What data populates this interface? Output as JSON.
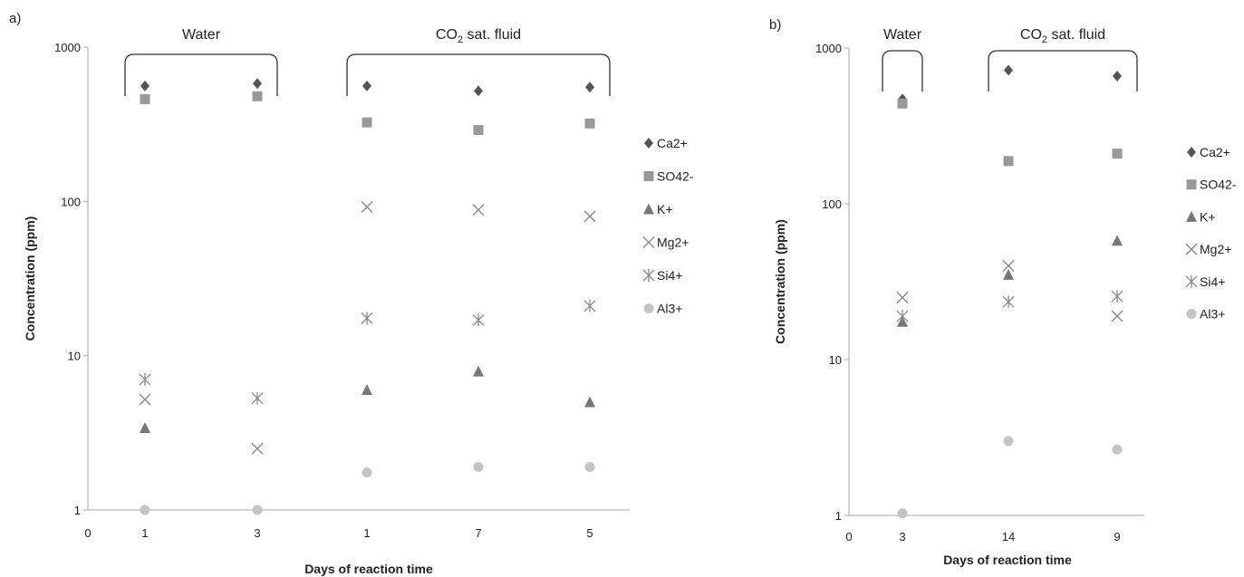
{
  "colors": {
    "Ca2+": "#555555",
    "SO42-": "#999999",
    "K+": "#777777",
    "Mg2+": "#888888",
    "Si4+": "#8a8a8a",
    "Al3+": "#c4c4c4",
    "axis": "#aaaaaa"
  },
  "chart_data": [
    {
      "panel_label": "a)",
      "type": "scatter",
      "x_scale": "category",
      "y_scale": "log",
      "ylim": [
        1,
        1000
      ],
      "y_ticks": [
        1,
        10,
        100,
        1000
      ],
      "y_tick_labels": [
        "1",
        "10",
        "100",
        "1000"
      ],
      "x_origin_label": "0",
      "categories": [
        "1",
        "3",
        "1",
        "7",
        "5"
      ],
      "xlabel": "Days of reaction time",
      "ylabel": "Concentration (ppm)",
      "groups": [
        {
          "label": "Water",
          "label_sub": "",
          "label_rest": "",
          "from": 0,
          "to": 1
        },
        {
          "label": "CO",
          "label_sub": "2",
          "label_rest": " sat. fluid",
          "from": 2,
          "to": 4
        }
      ],
      "legend_position": "right",
      "series": [
        {
          "name": "Ca2+",
          "marker": "diamond",
          "values": [
            560,
            580,
            560,
            520,
            550
          ]
        },
        {
          "name": "SO42-",
          "marker": "square",
          "values": [
            460,
            480,
            325,
            290,
            320
          ]
        },
        {
          "name": "K+",
          "marker": "triangle",
          "values": [
            3.4,
            null,
            6.0,
            7.9,
            5.0
          ]
        },
        {
          "name": "Mg2+",
          "marker": "x",
          "values": [
            5.2,
            2.5,
            92,
            88,
            80
          ]
        },
        {
          "name": "Si4+",
          "marker": "asterisk",
          "values": [
            7.0,
            5.3,
            17.5,
            17.0,
            21
          ]
        },
        {
          "name": "Al3+",
          "marker": "circle",
          "values": [
            1.0,
            1.0,
            1.75,
            1.9,
            1.9
          ]
        }
      ]
    },
    {
      "panel_label": "b)",
      "type": "scatter",
      "x_scale": "category",
      "y_scale": "log",
      "ylim": [
        1,
        1000
      ],
      "y_ticks": [
        1,
        10,
        100,
        1000
      ],
      "y_tick_labels": [
        "1",
        "10",
        "100",
        "1000"
      ],
      "x_origin_label": "0",
      "categories": [
        "3",
        "14",
        "9"
      ],
      "xlabel": "Days of reaction time",
      "ylabel": "Concentration (ppm)",
      "groups": [
        {
          "label": "Water",
          "label_sub": "",
          "label_rest": "",
          "from": 0,
          "to": 0
        },
        {
          "label": "CO",
          "label_sub": "2",
          "label_rest": " sat. fluid",
          "from": 1,
          "to": 2
        }
      ],
      "legend_position": "right",
      "series": [
        {
          "name": "Ca2+",
          "marker": "diamond",
          "values": [
            470,
            720,
            660
          ]
        },
        {
          "name": "SO42-",
          "marker": "square",
          "values": [
            440,
            188,
            210
          ]
        },
        {
          "name": "K+",
          "marker": "triangle",
          "values": [
            17.5,
            35,
            58
          ]
        },
        {
          "name": "Mg2+",
          "marker": "x",
          "values": [
            25,
            40,
            19
          ]
        },
        {
          "name": "Si4+",
          "marker": "asterisk",
          "values": [
            19,
            23.5,
            25.5
          ]
        },
        {
          "name": "Al3+",
          "marker": "circle",
          "values": [
            1.03,
            3.0,
            2.65
          ]
        }
      ]
    }
  ]
}
